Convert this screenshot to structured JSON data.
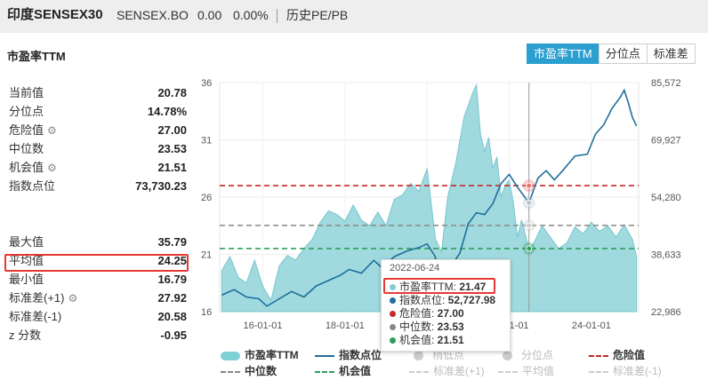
{
  "header": {
    "index_name": "印度SENSEX30",
    "code": "SENSEX.BO",
    "price": "0.00",
    "change_pct": "0.00%",
    "nav_link": "历史PE/PB"
  },
  "section_title": "市盈率TTM",
  "tabs": [
    {
      "label": "市盈率TTM",
      "active": true
    },
    {
      "label": "分位点",
      "active": false
    },
    {
      "label": "标准差",
      "active": false
    }
  ],
  "stats_top": [
    {
      "label": "当前值",
      "value": "20.78",
      "gear": false
    },
    {
      "label": "分位点",
      "value": "14.78%",
      "gear": false
    },
    {
      "label": "危险值",
      "value": "27.00",
      "gear": true
    },
    {
      "label": "中位数",
      "value": "23.53",
      "gear": false
    },
    {
      "label": "机会值",
      "value": "21.51",
      "gear": true
    },
    {
      "label": "指数点位",
      "value": "73,730.23",
      "gear": false
    }
  ],
  "stats_bottom": [
    {
      "label": "最大值",
      "value": "35.79",
      "gear": false
    },
    {
      "label": "平均值",
      "value": "24.25",
      "gear": false
    },
    {
      "label": "最小值",
      "value": "16.79",
      "gear": false
    },
    {
      "label": "标准差(+1)",
      "value": "27.92",
      "gear": true
    },
    {
      "label": "标准差(-1)",
      "value": "20.58",
      "gear": false
    },
    {
      "label": "z 分数",
      "value": "-0.95",
      "gear": false
    }
  ],
  "tooltip": {
    "date": "2022-06-24",
    "items": [
      {
        "label": "市盈率TTM: ",
        "value": "21.47",
        "color": "#7fcfd6"
      },
      {
        "label": "指数点位: ",
        "value": "52,727.98",
        "color": "#1f6e9c"
      },
      {
        "label": "危险值: ",
        "value": "27.00",
        "color": "#c62828"
      },
      {
        "label": "中位数: ",
        "value": "23.53",
        "color": "#888888"
      },
      {
        "label": "机会值: ",
        "value": "21.51",
        "color": "#2e9e5b"
      }
    ]
  },
  "legend": [
    {
      "label": "市盈率TTM",
      "kind": "area",
      "color": "#7fcfd6",
      "dim": false
    },
    {
      "label": "指数点位",
      "kind": "line",
      "color": "#1f6e9c",
      "dim": false
    },
    {
      "label": "稍低点",
      "kind": "dot",
      "color": "#cccccc",
      "dim": true
    },
    {
      "label": "分位点",
      "kind": "dot",
      "color": "#cccccc",
      "dim": true
    },
    {
      "label": "危险值",
      "kind": "dash",
      "color": "#c62828",
      "dim": false
    },
    {
      "label": "中位数",
      "kind": "dash",
      "color": "#888888",
      "dim": false
    },
    {
      "label": "机会值",
      "kind": "dash",
      "color": "#2e9e5b",
      "dim": false
    },
    {
      "label": "标准差(+1)",
      "kind": "dash",
      "color": "#cccccc",
      "dim": true
    },
    {
      "label": "平均值",
      "kind": "dash",
      "color": "#cccccc",
      "dim": true
    },
    {
      "label": "标准差(-1)",
      "kind": "dash",
      "color": "#cccccc",
      "dim": true
    }
  ],
  "chart_data": {
    "type": "area",
    "x_tick_labels": [
      "16-01-01",
      "18-01-01",
      "20-01-01",
      "22-01-01",
      "24-01-01"
    ],
    "x_ticks": [
      2016.0,
      2018.0,
      2020.0,
      2022.0,
      2024.0
    ],
    "x_range": [
      2014.95,
      2025.15
    ],
    "y_left_ticks": [
      "36",
      "31",
      "26",
      "21",
      "16"
    ],
    "y_left_range": [
      16,
      36
    ],
    "y_right_ticks": [
      "85,572",
      "69,927",
      "54,280",
      "38,633",
      "22,986"
    ],
    "y_right_range": [
      22986,
      85572
    ],
    "reference_lines": {
      "danger": 27.0,
      "median": 23.53,
      "opportunity": 21.51
    },
    "hover_x": 2022.48,
    "series": [
      {
        "name": "市盈率TTM",
        "axis": "left",
        "x": [
          2015.0,
          2015.2,
          2015.4,
          2015.6,
          2015.8,
          2016.0,
          2016.2,
          2016.4,
          2016.6,
          2016.8,
          2017.0,
          2017.2,
          2017.4,
          2017.6,
          2017.8,
          2018.0,
          2018.2,
          2018.4,
          2018.6,
          2018.8,
          2019.0,
          2019.2,
          2019.4,
          2019.6,
          2019.8,
          2020.0,
          2020.2,
          2020.35,
          2020.5,
          2020.7,
          2020.9,
          2021.0,
          2021.1,
          2021.2,
          2021.3,
          2021.4,
          2021.5,
          2021.6,
          2021.7,
          2021.8,
          2021.9,
          2022.0,
          2022.1,
          2022.2,
          2022.3,
          2022.48,
          2022.6,
          2022.8,
          2023.0,
          2023.2,
          2023.4,
          2023.6,
          2023.8,
          2024.0,
          2024.2,
          2024.4,
          2024.6,
          2024.8,
          2025.0,
          2025.1
        ],
        "values": [
          19.6,
          20.8,
          19.0,
          18.5,
          20.5,
          18.2,
          17.0,
          20.0,
          20.9,
          20.5,
          21.5,
          22.3,
          23.8,
          24.8,
          24.5,
          23.9,
          25.3,
          24.0,
          23.5,
          24.7,
          23.5,
          25.8,
          26.2,
          27.2,
          26.5,
          28.5,
          22.4,
          21.2,
          26.0,
          29.0,
          33.0,
          34.0,
          35.0,
          35.79,
          31.5,
          30.0,
          31.2,
          28.5,
          29.5,
          26.0,
          27.0,
          27.5,
          25.5,
          22.5,
          24.0,
          21.47,
          22.0,
          23.5,
          22.5,
          21.5,
          22.0,
          23.4,
          22.8,
          23.8,
          23.0,
          23.5,
          22.5,
          23.6,
          22.3,
          20.78
        ]
      },
      {
        "name": "指数点位",
        "axis": "right",
        "x": [
          2015.0,
          2015.3,
          2015.6,
          2015.9,
          2016.1,
          2016.4,
          2016.7,
          2017.0,
          2017.3,
          2017.6,
          2017.9,
          2018.1,
          2018.4,
          2018.7,
          2018.9,
          2019.2,
          2019.5,
          2019.8,
          2020.0,
          2020.2,
          2020.3,
          2020.5,
          2020.8,
          2021.0,
          2021.2,
          2021.4,
          2021.6,
          2021.8,
          2022.0,
          2022.2,
          2022.48,
          2022.7,
          2022.9,
          2023.1,
          2023.3,
          2023.6,
          2023.9,
          2024.1,
          2024.3,
          2024.5,
          2024.7,
          2024.8,
          2024.9,
          2025.0,
          2025.1
        ],
        "values": [
          27500,
          29000,
          27000,
          26500,
          24500,
          26500,
          28500,
          27000,
          30000,
          31500,
          33000,
          34500,
          33500,
          37000,
          35000,
          38000,
          39500,
          40500,
          41500,
          38000,
          28500,
          34000,
          39000,
          47000,
          50000,
          49500,
          52500,
          58000,
          60500,
          57000,
          52728,
          59500,
          61500,
          59000,
          61500,
          65500,
          66000,
          71500,
          74000,
          78500,
          81500,
          83500,
          80000,
          76000,
          73730
        ]
      }
    ]
  }
}
